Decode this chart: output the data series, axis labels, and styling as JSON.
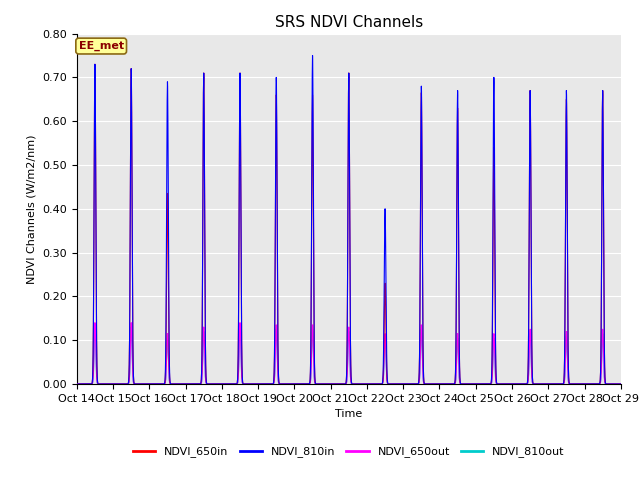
{
  "title": "SRS NDVI Channels",
  "xlabel": "Time",
  "ylabel": "NDVI Channels (W/m2/nm)",
  "ylim": [
    0.0,
    0.8
  ],
  "annotation_text": "EE_met",
  "annotation_color": "#8B0000",
  "annotation_bg": "#FFFF99",
  "legend_entries": [
    "NDVI_650in",
    "NDVI_810in",
    "NDVI_650out",
    "NDVI_810out"
  ],
  "line_colors": [
    "#FF0000",
    "#0000FF",
    "#FF00FF",
    "#00CCCC"
  ],
  "tick_labels": [
    "Oct 14",
    "Oct 15",
    "Oct 16",
    "Oct 17",
    "Oct 18",
    "Oct 19",
    "Oct 20",
    "Oct 21",
    "Oct 22",
    "Oct 23",
    "Oct 24",
    "Oct 25",
    "Oct 26",
    "Oct 27",
    "Oct 28",
    "Oct 29"
  ],
  "background_color": "#E8E8E8",
  "grid_color": "#FFFFFF",
  "title_fontsize": 11,
  "axis_fontsize": 8,
  "legend_fontsize": 8,
  "day_peaks_810in": [
    0.73,
    0.72,
    0.69,
    0.71,
    0.71,
    0.7,
    0.75,
    0.71,
    0.4,
    0.68,
    0.67,
    0.7,
    0.67,
    0.67,
    0.67
  ],
  "day_peaks_650in": [
    0.73,
    0.72,
    0.435,
    0.71,
    0.71,
    0.66,
    0.66,
    0.71,
    0.23,
    0.665,
    0.63,
    0.54,
    0.67,
    0.65,
    0.67
  ],
  "day_peaks_650out": [
    0.14,
    0.14,
    0.115,
    0.13,
    0.14,
    0.135,
    0.135,
    0.13,
    0.115,
    0.135,
    0.115,
    0.115,
    0.125,
    0.12,
    0.125
  ],
  "day_peaks_810out": [
    0.13,
    0.13,
    0.105,
    0.12,
    0.13,
    0.125,
    0.125,
    0.12,
    0.105,
    0.125,
    0.105,
    0.105,
    0.115,
    0.11,
    0.115
  ],
  "sigma": 0.55,
  "yticks": [
    0.0,
    0.1,
    0.2,
    0.3,
    0.4,
    0.5,
    0.6,
    0.7,
    0.8
  ]
}
